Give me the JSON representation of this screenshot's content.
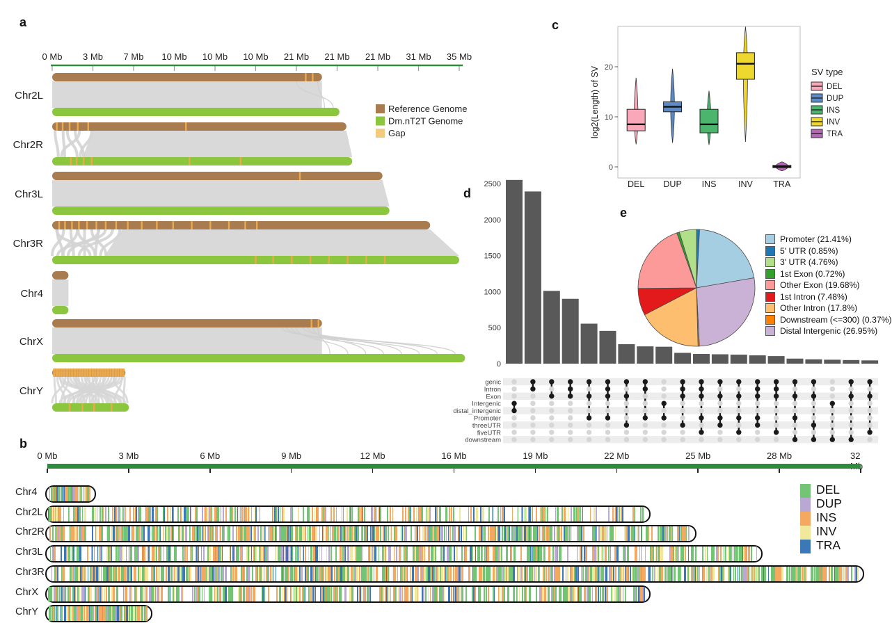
{
  "labels": {
    "a": "a",
    "b": "b",
    "c": "c",
    "d": "d",
    "e": "e"
  },
  "chart_data": [
    {
      "id": "a",
      "type": "synteny",
      "axis": {
        "labels": [
          "0 Mb",
          "3 Mb",
          "7 Mb",
          "10 Mb",
          "10 Mb",
          "10 Mb",
          "21 Mb",
          "21 Mb",
          "21 Mb",
          "31 Mb",
          "35 Mb"
        ],
        "mb_end": 35
      },
      "colors": {
        "reference": "#a87c4f",
        "assembly": "#8cc63e",
        "gap": "#eaa94e",
        "ribbon": "#d9d9d9",
        "axis": "#2e8b3d"
      },
      "legend": [
        {
          "label": "Reference Genome",
          "color": "#a87c4f"
        },
        {
          "label": "Dm.nT2T Genome",
          "color": "#8cc63e"
        },
        {
          "label": "Gap",
          "color": "#f4ca7d"
        }
      ],
      "chromosomes": [
        {
          "name": "Chr2L",
          "ref_mb": 23.2,
          "asm_mb": 24.7,
          "ref_gaps": [
            21.8,
            22.4
          ],
          "asm_gaps": [],
          "ribbon": "band-curves-right",
          "curves": 2
        },
        {
          "name": "Chr2R",
          "ref_mb": 25.3,
          "asm_mb": 25.8,
          "ref_gaps": [
            0.4,
            0.9,
            1.5,
            2.2,
            3.1,
            11.5
          ],
          "asm_gaps": [
            1.6,
            2.1,
            2.7,
            3.4,
            11.8,
            16.2
          ],
          "ribbon": "band-curves-left",
          "curves": 6,
          "curve_zone_mb": 3.5
        },
        {
          "name": "Chr3L",
          "ref_mb": 28.4,
          "asm_mb": 29.0,
          "ref_gaps": [
            21.3
          ],
          "asm_gaps": [],
          "ribbon": "band",
          "curves": 0
        },
        {
          "name": "Chr3R",
          "ref_mb": 32.5,
          "asm_mb": 35.0,
          "ref_gaps": [
            0.6,
            1.1,
            1.7,
            2.3,
            3.0,
            3.8,
            4.6,
            5.5,
            6.5,
            7.7,
            9.0,
            10.4,
            12.0,
            13.6,
            15.2,
            16.6,
            17.6
          ],
          "asm_gaps": [
            17.5,
            19.0,
            20.6,
            22.2,
            23.8,
            25.4,
            27.0,
            28.6
          ],
          "ribbon": "band-curves-left",
          "curves": 13,
          "curve_zone_mb": 6
        },
        {
          "name": "Chr4",
          "ref_mb": 1.4,
          "asm_mb": 1.4,
          "ref_gaps": [],
          "asm_gaps": [],
          "ribbon": "band",
          "curves": 0
        },
        {
          "name": "ChrX",
          "ref_mb": 23.2,
          "asm_mb": 35.5,
          "ref_gaps": [
            22.3,
            22.9
          ],
          "asm_gaps": [],
          "ribbon": "band-curves-right",
          "curves": 8
        },
        {
          "name": "ChrY",
          "ref_mb": 6.3,
          "asm_mb": 6.6,
          "ref_gaps": "dense",
          "asm_gaps": [
            1.5,
            2.6,
            3.6,
            5.1
          ],
          "ribbon": "curves-cross",
          "curves": 34
        }
      ]
    },
    {
      "id": "b",
      "type": "ideogram-density",
      "axis": {
        "labels": [
          "0 Mb",
          "3 Mb",
          "6 Mb",
          "9 Mb",
          "12 Mb",
          "16 Mb",
          "19 Mb",
          "22 Mb",
          "25 Mb",
          "28 Mb",
          "32 Mb"
        ],
        "mb_end": 32
      },
      "axis_color": "#2e8b3d",
      "legend": [
        {
          "label": "DEL",
          "color": "#74c476"
        },
        {
          "label": "DUP",
          "color": "#b9a7d4"
        },
        {
          "label": "INS",
          "color": "#f5a860"
        },
        {
          "label": "INV",
          "color": "#f0e89a"
        },
        {
          "label": "TRA",
          "color": "#3c78b8"
        }
      ],
      "stripe_weights": {
        "DEL": 0.38,
        "INS": 0.3,
        "INV": 0.12,
        "DUP": 0.08,
        "TRA": 0.12
      },
      "chromosomes": [
        {
          "name": "Chr4",
          "length_mb": 1.9,
          "stripes": 70,
          "seed": 11
        },
        {
          "name": "Chr2L",
          "length_mb": 23.7,
          "stripes": 300,
          "seed": 22,
          "bias": "left"
        },
        {
          "name": "Chr2R",
          "length_mb": 25.5,
          "stripes": 560,
          "seed": 33
        },
        {
          "name": "Chr3L",
          "length_mb": 28.1,
          "stripes": 440,
          "seed": 44
        },
        {
          "name": "Chr3R",
          "length_mb": 32.1,
          "stripes": 720,
          "seed": 55
        },
        {
          "name": "ChrX",
          "length_mb": 23.7,
          "stripes": 400,
          "seed": 66
        },
        {
          "name": "ChrY",
          "length_mb": 4.1,
          "stripes": 170,
          "seed": 77
        }
      ]
    },
    {
      "id": "c",
      "type": "boxplot-violin",
      "ylabel": "log2(Length) of SV",
      "yticks": [
        0,
        10,
        20
      ],
      "categories": [
        "DEL",
        "DUP",
        "INS",
        "INV",
        "TRA"
      ],
      "legend_title": "SV type",
      "series": [
        {
          "name": "DEL",
          "color": "#f8a8b8",
          "violin_lo": 4.5,
          "violin_hi": 17.8,
          "q1": 7.2,
          "median": 8.5,
          "q3": 11.5,
          "violin_w": 11
        },
        {
          "name": "DUP",
          "color": "#5b8cc8",
          "violin_lo": 4.8,
          "violin_hi": 19.6,
          "q1": 11.0,
          "median": 12.0,
          "q3": 13.0,
          "violin_w": 11
        },
        {
          "name": "INS",
          "color": "#4cb56d",
          "violin_lo": 4.4,
          "violin_hi": 15.2,
          "q1": 6.8,
          "median": 8.5,
          "q3": 11.5,
          "violin_w": 11
        },
        {
          "name": "INV",
          "color": "#eed72e",
          "violin_lo": 5.0,
          "violin_hi": 28.0,
          "q1": 17.5,
          "median": 20.6,
          "q3": 22.8,
          "violin_w": 12
        },
        {
          "name": "TRA",
          "color": "#b668b6",
          "violin_lo": -0.8,
          "violin_hi": 1.0,
          "q1": -0.15,
          "median": 0.05,
          "q3": 0.3,
          "violin_w": 36
        }
      ]
    },
    {
      "id": "d",
      "type": "upset",
      "yticks": [
        0,
        500,
        1000,
        1500,
        2000,
        2500
      ],
      "bar_color": "#595959",
      "sets": [
        "genic",
        "Intron",
        "Exon",
        "Intergenic",
        "distal_intergenic",
        "Promoter",
        "threeUTR",
        "fiveUTR",
        "downstream"
      ],
      "combos": [
        {
          "value": 2550,
          "members": [
            "Intergenic",
            "distal_intergenic"
          ]
        },
        {
          "value": 2390,
          "members": [
            "genic",
            "Intron"
          ]
        },
        {
          "value": 1010,
          "members": [
            "genic",
            "Exon"
          ]
        },
        {
          "value": 900,
          "members": [
            "genic",
            "Intron",
            "Exon"
          ]
        },
        {
          "value": 555,
          "members": [
            "genic",
            "Exon",
            "Promoter"
          ]
        },
        {
          "value": 455,
          "members": [
            "genic",
            "Intron",
            "Exon",
            "Promoter"
          ]
        },
        {
          "value": 270,
          "members": [
            "genic",
            "Exon",
            "threeUTR"
          ]
        },
        {
          "value": 240,
          "members": [
            "genic",
            "Intron",
            "Promoter"
          ]
        },
        {
          "value": 235,
          "members": [
            "Intergenic",
            "Promoter"
          ]
        },
        {
          "value": 150,
          "members": [
            "genic",
            "Intron",
            "Exon",
            "threeUTR"
          ]
        },
        {
          "value": 135,
          "members": [
            "genic",
            "Intron",
            "Exon",
            "Promoter",
            "fiveUTR"
          ]
        },
        {
          "value": 130,
          "members": [
            "genic",
            "Exon",
            "Promoter",
            "threeUTR"
          ]
        },
        {
          "value": 125,
          "members": [
            "genic",
            "Exon",
            "Promoter",
            "fiveUTR"
          ]
        },
        {
          "value": 115,
          "members": [
            "genic",
            "Intron",
            "Exon",
            "Promoter",
            "threeUTR"
          ]
        },
        {
          "value": 105,
          "members": [
            "genic",
            "Intron",
            "Exon",
            "fiveUTR"
          ]
        },
        {
          "value": 70,
          "members": [
            "genic",
            "Exon",
            "Promoter",
            "downstream"
          ]
        },
        {
          "value": 60,
          "members": [
            "genic",
            "Exon",
            "threeUTR",
            "downstream"
          ]
        },
        {
          "value": 55,
          "members": [
            "Intergenic",
            "downstream"
          ]
        },
        {
          "value": 50,
          "members": [
            "genic",
            "Exon",
            "downstream"
          ]
        },
        {
          "value": 45,
          "members": [
            "genic",
            "Exon",
            "fiveUTR"
          ]
        }
      ]
    },
    {
      "id": "e",
      "type": "pie",
      "slices": [
        {
          "label": "Promoter (21.41%)",
          "name": "Promoter",
          "pct": 21.41,
          "color": "#a6cee3"
        },
        {
          "label": "5' UTR (0.85%)",
          "name": "5' UTR",
          "pct": 0.85,
          "color": "#1f78b4"
        },
        {
          "label": "3' UTR (4.76%)",
          "name": "3' UTR",
          "pct": 4.76,
          "color": "#b2df8a"
        },
        {
          "label": "1st Exon (0.72%)",
          "name": "1st Exon",
          "pct": 0.72,
          "color": "#33a02c"
        },
        {
          "label": "Other Exon (19.68%)",
          "name": "Other Exon",
          "pct": 19.68,
          "color": "#fb9a99"
        },
        {
          "label": "1st Intron (7.48%)",
          "name": "1st Intron",
          "pct": 7.48,
          "color": "#e31a1c"
        },
        {
          "label": "Other Intron (17.8%)",
          "name": "Other Intron",
          "pct": 17.8,
          "color": "#fdbf6f"
        },
        {
          "label": "Downstream (<=300) (0.37%)",
          "name": "Downstream (<=300)",
          "pct": 0.37,
          "color": "#ff7f00"
        },
        {
          "label": "Distal Intergenic (26.95%)",
          "name": "Distal Intergenic",
          "pct": 26.95,
          "color": "#cab2d6"
        }
      ],
      "draw_order": [
        1,
        0,
        8,
        7,
        6,
        5,
        4,
        3,
        2
      ]
    }
  ]
}
